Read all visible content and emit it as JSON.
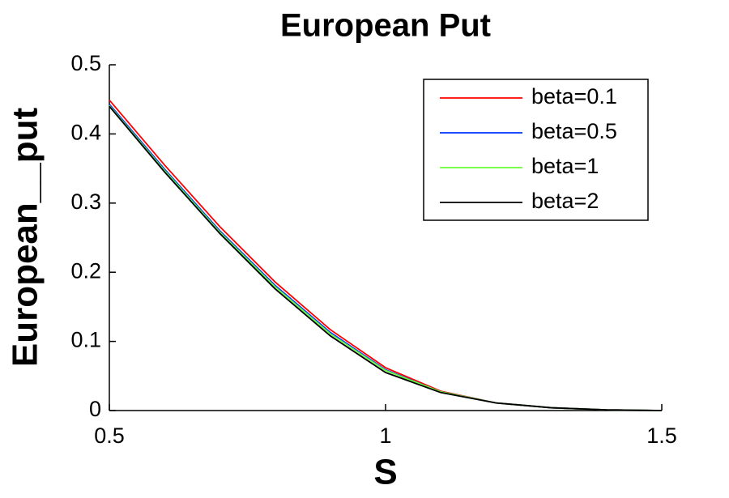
{
  "chart_data": {
    "type": "line",
    "title": "European Put",
    "xlabel": "S",
    "ylabel": "European__put",
    "x": [
      0.5,
      0.6,
      0.7,
      0.8,
      0.9,
      1.0,
      1.1,
      1.2,
      1.3,
      1.4,
      1.5
    ],
    "series": [
      {
        "name": "beta=0.1",
        "color": "#ff0000",
        "values": [
          0.449,
          0.355,
          0.266,
          0.186,
          0.117,
          0.062,
          0.028,
          0.011,
          0.004,
          0.001,
          0.0
        ]
      },
      {
        "name": "beta=0.5",
        "color": "#0033ff",
        "values": [
          0.443,
          0.349,
          0.26,
          0.181,
          0.113,
          0.059,
          0.027,
          0.011,
          0.004,
          0.001,
          0.0
        ]
      },
      {
        "name": "beta=1",
        "color": "#66ff33",
        "values": [
          0.441,
          0.347,
          0.258,
          0.179,
          0.111,
          0.058,
          0.027,
          0.011,
          0.004,
          0.001,
          0.0
        ]
      },
      {
        "name": "beta=2",
        "color": "#000000",
        "values": [
          0.44,
          0.345,
          0.256,
          0.176,
          0.108,
          0.055,
          0.026,
          0.011,
          0.004,
          0.001,
          0.0
        ]
      }
    ],
    "xlim": [
      0.5,
      1.5
    ],
    "xticks": [
      0.5,
      1,
      1.5
    ],
    "ylim": [
      0,
      0.5
    ],
    "yticks": [
      0,
      0.1,
      0.2,
      0.3,
      0.4,
      0.5
    ],
    "grid": false,
    "legend": "top-right"
  }
}
